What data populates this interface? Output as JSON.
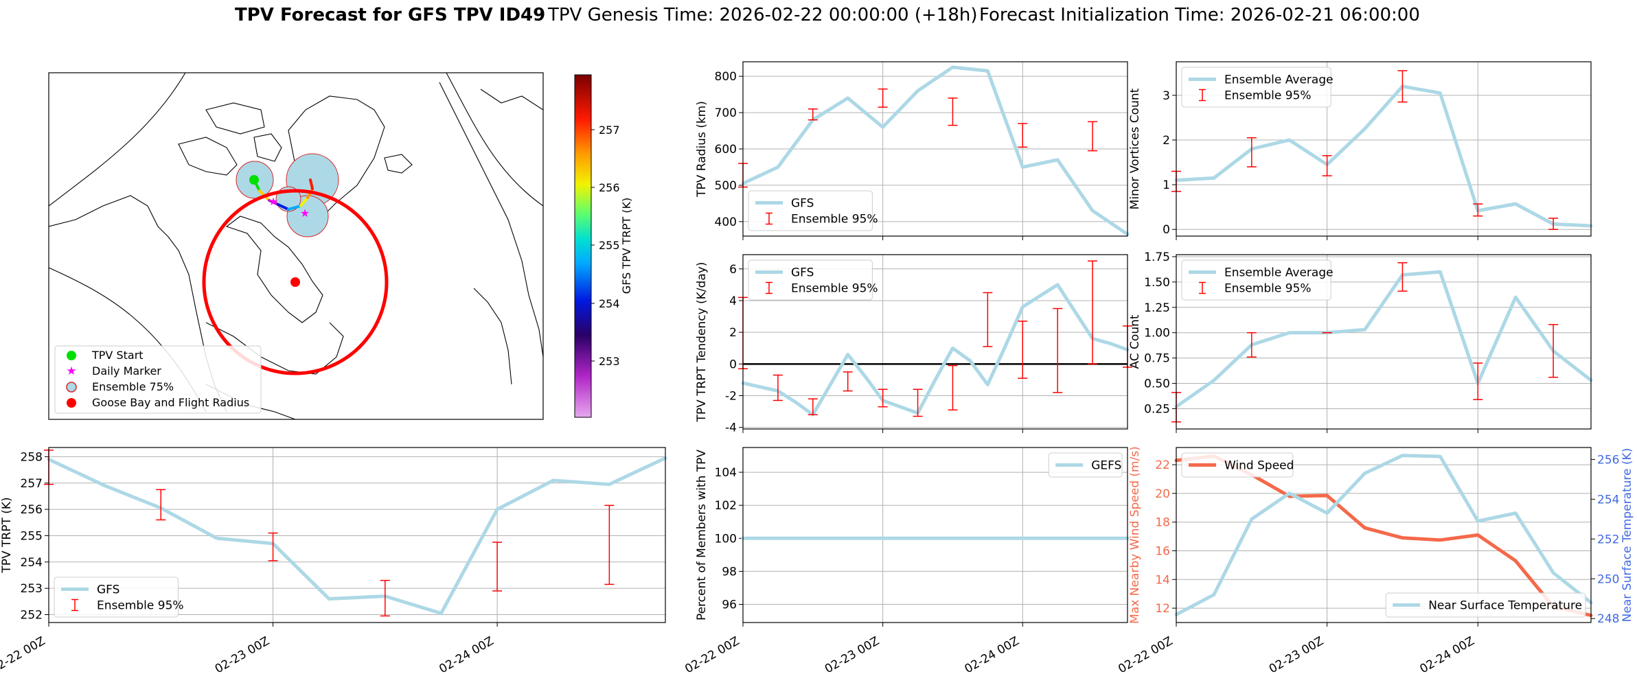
{
  "title": {
    "bold": "TPV Forecast for GFS TPV ID49",
    "genesis": "TPV Genesis Time: 2026-02-22 00:00:00 (+18h)",
    "init": "Forecast Initialization Time: 2026-02-21 06:00:00"
  },
  "colors": {
    "gfs_line": "#add8e6",
    "ensemble": "#ff0000",
    "wind": "#f4694a",
    "temp_axis": "#4169e1",
    "wind_axis": "#f4694a"
  },
  "map": {
    "legend": [
      "TPV Start",
      "Daily Marker",
      "Ensemble 75%",
      "Goose Bay and Flight Radius"
    ],
    "colorbar": {
      "label": "GFS TPV TRPT (K)",
      "ticks": [
        "257",
        "256",
        "255",
        "254",
        "253"
      ]
    }
  },
  "time_ticks": [
    "02-22 00Z",
    "02-23 00Z",
    "02-24 00Z"
  ],
  "chart_data": [
    {
      "id": "radius",
      "type": "line",
      "ylabel": "TPV Radius (km)",
      "ylim": [
        360,
        840
      ],
      "yticks": [
        400,
        500,
        600,
        700,
        800
      ],
      "legend": [
        "GFS",
        "Ensemble 95%"
      ],
      "legend_pos": "lower-left",
      "x_hours": [
        0,
        6,
        12,
        18,
        24,
        30,
        36,
        42,
        48,
        54,
        60,
        66
      ],
      "series": [
        {
          "name": "GFS",
          "values": [
            505,
            550,
            680,
            740,
            660,
            760,
            825,
            815,
            550,
            570,
            430,
            365
          ]
        }
      ],
      "errorbars": [
        {
          "x": 0,
          "low": 495,
          "high": 560
        },
        {
          "x": 12,
          "low": 680,
          "high": 710
        },
        {
          "x": 24,
          "low": 715,
          "high": 765
        },
        {
          "x": 36,
          "low": 665,
          "high": 740
        },
        {
          "x": 48,
          "low": 605,
          "high": 670
        },
        {
          "x": 60,
          "low": 595,
          "high": 675
        }
      ]
    },
    {
      "id": "minor",
      "type": "line",
      "ylabel": "Minor Vortices Count",
      "ylim": [
        -0.15,
        3.75
      ],
      "yticks": [
        0,
        1,
        2,
        3
      ],
      "legend": [
        "Ensemble Average",
        "Ensemble 95%"
      ],
      "legend_pos": "upper-left",
      "x_hours": [
        0,
        6,
        12,
        18,
        24,
        30,
        36,
        42,
        48,
        54,
        60,
        66
      ],
      "series": [
        {
          "name": "Ensemble Average",
          "values": [
            1.1,
            1.15,
            1.8,
            2.0,
            1.45,
            2.25,
            3.2,
            3.05,
            0.42,
            0.57,
            0.12,
            0.08
          ]
        }
      ],
      "errorbars": [
        {
          "x": 0,
          "low": 0.85,
          "high": 1.3
        },
        {
          "x": 12,
          "low": 1.4,
          "high": 2.05
        },
        {
          "x": 24,
          "low": 1.2,
          "high": 1.65
        },
        {
          "x": 36,
          "low": 2.85,
          "high": 3.55
        },
        {
          "x": 48,
          "low": 0.3,
          "high": 0.57
        },
        {
          "x": 60,
          "low": 0.0,
          "high": 0.25
        }
      ]
    },
    {
      "id": "tendency",
      "type": "line",
      "ylabel": "TPV TRPT Tendency (K/day)",
      "ylim": [
        -4.1,
        6.9
      ],
      "yticks": [
        -4,
        -2,
        0,
        2,
        4,
        6
      ],
      "zero_line": true,
      "legend": [
        "GFS",
        "Ensemble 95%"
      ],
      "legend_pos": "upper-left",
      "x_hours": [
        0,
        3,
        6,
        9,
        12,
        15,
        18,
        21,
        24,
        27,
        30,
        33,
        36,
        39,
        42,
        45,
        48,
        51,
        54,
        57,
        60,
        63,
        66
      ],
      "series": [
        {
          "name": "GFS",
          "values": [
            -1.2,
            -1.45,
            -1.7,
            -2.4,
            -3.2,
            -1.3,
            0.6,
            -0.8,
            -2.3,
            -2.7,
            -3.1,
            -1.0,
            1.0,
            0.2,
            -1.3,
            1.1,
            3.6,
            4.3,
            5.0,
            3.3,
            1.6,
            1.3,
            0.9
          ]
        }
      ],
      "errorbars": [
        {
          "x": 0,
          "low": -0.3,
          "high": 4.2
        },
        {
          "x": 6,
          "low": -2.3,
          "high": -0.7
        },
        {
          "x": 12,
          "low": -3.2,
          "high": -2.2
        },
        {
          "x": 18,
          "low": -1.7,
          "high": -0.5
        },
        {
          "x": 24,
          "low": -2.7,
          "high": -1.6
        },
        {
          "x": 30,
          "low": -3.3,
          "high": -1.6
        },
        {
          "x": 36,
          "low": -2.9,
          "high": -0.1
        },
        {
          "x": 42,
          "low": 1.1,
          "high": 4.5
        },
        {
          "x": 48,
          "low": -0.9,
          "high": 2.7
        },
        {
          "x": 54,
          "low": -1.8,
          "high": 3.5
        },
        {
          "x": 60,
          "low": 0.0,
          "high": 6.5
        },
        {
          "x": 66,
          "low": -0.2,
          "high": 2.4
        }
      ]
    },
    {
      "id": "ac",
      "type": "line",
      "ylabel": "AC Count",
      "ylim": [
        0.05,
        1.77
      ],
      "yticks": [
        0.25,
        0.5,
        0.75,
        1.0,
        1.25,
        1.5,
        1.75
      ],
      "legend": [
        "Ensemble Average",
        "Ensemble 95%"
      ],
      "legend_pos": "upper-left",
      "x_hours": [
        0,
        6,
        12,
        18,
        24,
        30,
        36,
        42,
        48,
        54,
        60,
        66
      ],
      "series": [
        {
          "name": "Ensemble Average",
          "values": [
            0.27,
            0.53,
            0.88,
            1.0,
            1.0,
            1.03,
            1.57,
            1.6,
            0.5,
            1.35,
            0.82,
            0.53
          ]
        }
      ],
      "errorbars": [
        {
          "x": 0,
          "low": 0.12,
          "high": 0.41
        },
        {
          "x": 12,
          "low": 0.76,
          "high": 1.0
        },
        {
          "x": 24,
          "low": 1.0,
          "high": 1.0
        },
        {
          "x": 36,
          "low": 1.41,
          "high": 1.69
        },
        {
          "x": 48,
          "low": 0.34,
          "high": 0.7
        },
        {
          "x": 60,
          "low": 0.56,
          "high": 1.08
        }
      ]
    },
    {
      "id": "trpt",
      "type": "line",
      "ylabel": "TPV TRPT (K)",
      "ylim": [
        251.7,
        258.35
      ],
      "yticks": [
        252,
        253,
        254,
        255,
        256,
        257,
        258
      ],
      "legend": [
        "GFS",
        "Ensemble 95%"
      ],
      "legend_pos": "lower-left",
      "x_hours": [
        0,
        6,
        12,
        18,
        24,
        30,
        36,
        42,
        48,
        54,
        60,
        66
      ],
      "series": [
        {
          "name": "GFS",
          "values": [
            257.9,
            256.9,
            256.05,
            254.9,
            254.7,
            252.6,
            252.7,
            252.05,
            256.0,
            257.1,
            256.95,
            257.95
          ]
        }
      ],
      "errorbars": [
        {
          "x": 0,
          "low": 256.95,
          "high": 258.25
        },
        {
          "x": 12,
          "low": 255.6,
          "high": 256.75
        },
        {
          "x": 24,
          "low": 254.05,
          "high": 255.1
        },
        {
          "x": 36,
          "low": 251.95,
          "high": 253.3
        },
        {
          "x": 48,
          "low": 252.9,
          "high": 254.75
        },
        {
          "x": 60,
          "low": 253.15,
          "high": 256.15
        }
      ]
    },
    {
      "id": "pct",
      "type": "line",
      "ylabel": "Percent of Members with TPV",
      "ylim": [
        94.9,
        105.5
      ],
      "yticks": [
        96,
        98,
        100,
        102,
        104
      ],
      "legend": [
        "GEFS"
      ],
      "legend_pos": "upper-right",
      "x_hours": [
        0,
        66
      ],
      "series": [
        {
          "name": "GEFS",
          "values": [
            100,
            100
          ]
        }
      ]
    },
    {
      "id": "wind",
      "type": "line",
      "ylabel": "Max Nearby Wind Speed (m/s)",
      "ylim": [
        11.0,
        23.2
      ],
      "yticks": [
        12,
        14,
        16,
        18,
        20,
        22
      ],
      "ylabel2": "Near Surface Temperature (K)",
      "ylim2": [
        247.8,
        256.6
      ],
      "yticks2": [
        248,
        250,
        252,
        254,
        256
      ],
      "legend": [
        "Wind Speed"
      ],
      "legend_pos": "upper-left",
      "legend2": [
        "Near Surface Temperature"
      ],
      "legend2_pos": "lower-right",
      "x_hours": [
        0,
        6,
        12,
        18,
        24,
        30,
        36,
        42,
        48,
        54,
        60,
        66
      ],
      "series": [
        {
          "name": "Wind Speed",
          "axis": "left",
          "values": [
            22.3,
            22.6,
            21.3,
            19.8,
            19.85,
            17.6,
            16.9,
            16.75,
            17.1,
            15.3,
            12.1,
            11.5
          ]
        },
        {
          "name": "Near Surface Temperature",
          "axis": "right",
          "values": [
            248.2,
            249.2,
            253.0,
            254.3,
            253.3,
            255.3,
            256.2,
            256.15,
            252.9,
            253.3,
            250.3,
            248.8
          ]
        }
      ]
    }
  ]
}
